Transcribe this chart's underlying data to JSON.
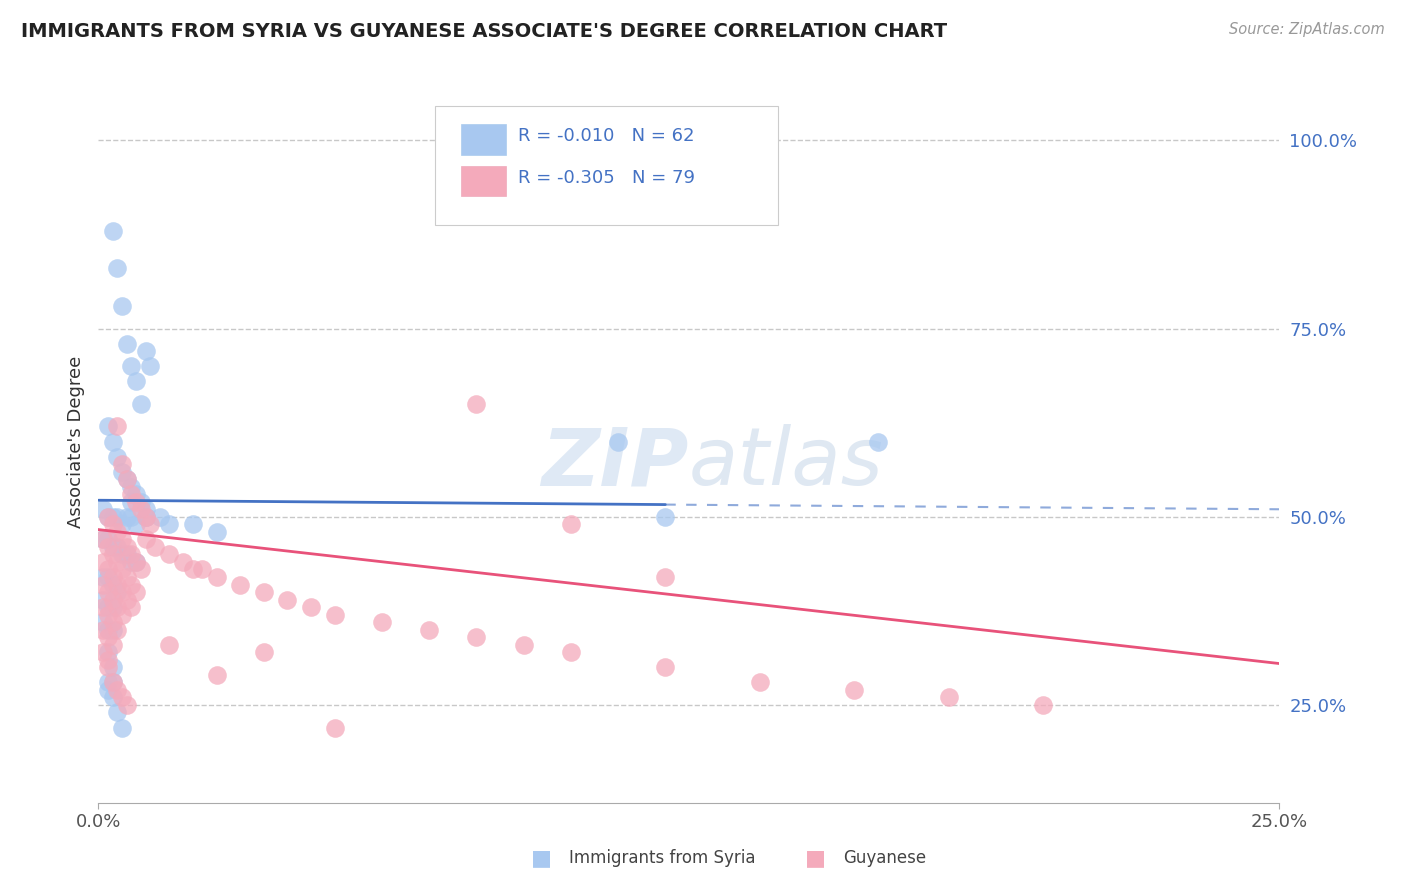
{
  "title": "IMMIGRANTS FROM SYRIA VS GUYANESE ASSOCIATE'S DEGREE CORRELATION CHART",
  "source": "Source: ZipAtlas.com",
  "ylabel": "Associate's Degree",
  "legend_label1": "Immigrants from Syria",
  "legend_label2": "Guyanese",
  "R1": "-0.010",
  "N1": "62",
  "R2": "-0.305",
  "N2": "79",
  "xlim": [
    0.0,
    0.25
  ],
  "ylim": [
    0.12,
    1.08
  ],
  "yticks": [
    0.25,
    0.5,
    0.75,
    1.0
  ],
  "ytick_labels": [
    "25.0%",
    "50.0%",
    "75.0%",
    "100.0%"
  ],
  "color_blue": "#A8C8F0",
  "color_pink": "#F4AABB",
  "color_blue_line": "#4472C4",
  "color_pink_line": "#E8527A",
  "color_grid": "#BBBBBB",
  "background": "#FFFFFF",
  "blue_x": [
    0.003,
    0.004,
    0.005,
    0.006,
    0.007,
    0.008,
    0.009,
    0.01,
    0.011,
    0.002,
    0.003,
    0.004,
    0.005,
    0.006,
    0.007,
    0.008,
    0.009,
    0.01,
    0.001,
    0.002,
    0.003,
    0.004,
    0.005,
    0.006,
    0.007,
    0.008,
    0.01,
    0.001,
    0.002,
    0.003,
    0.004,
    0.005,
    0.006,
    0.007,
    0.008,
    0.001,
    0.002,
    0.003,
    0.004,
    0.001,
    0.002,
    0.003,
    0.001,
    0.002,
    0.003,
    0.002,
    0.003,
    0.11,
    0.165,
    0.12,
    0.007,
    0.01,
    0.013,
    0.015,
    0.02,
    0.025,
    0.002,
    0.003,
    0.004,
    0.005,
    0.003,
    0.002
  ],
  "blue_y": [
    0.88,
    0.83,
    0.78,
    0.73,
    0.7,
    0.68,
    0.65,
    0.72,
    0.7,
    0.62,
    0.6,
    0.58,
    0.56,
    0.55,
    0.54,
    0.53,
    0.52,
    0.51,
    0.51,
    0.5,
    0.5,
    0.5,
    0.49,
    0.5,
    0.5,
    0.49,
    0.5,
    0.47,
    0.47,
    0.46,
    0.46,
    0.45,
    0.45,
    0.44,
    0.44,
    0.42,
    0.42,
    0.41,
    0.4,
    0.39,
    0.38,
    0.38,
    0.36,
    0.35,
    0.35,
    0.32,
    0.3,
    0.6,
    0.6,
    0.5,
    0.52,
    0.5,
    0.5,
    0.49,
    0.49,
    0.48,
    0.28,
    0.26,
    0.24,
    0.22,
    0.28,
    0.27
  ],
  "pink_x": [
    0.004,
    0.005,
    0.006,
    0.007,
    0.008,
    0.009,
    0.01,
    0.011,
    0.002,
    0.003,
    0.004,
    0.005,
    0.006,
    0.007,
    0.008,
    0.009,
    0.001,
    0.002,
    0.003,
    0.004,
    0.005,
    0.006,
    0.007,
    0.008,
    0.001,
    0.002,
    0.003,
    0.004,
    0.005,
    0.006,
    0.007,
    0.001,
    0.002,
    0.003,
    0.004,
    0.005,
    0.001,
    0.002,
    0.003,
    0.004,
    0.001,
    0.002,
    0.003,
    0.001,
    0.002,
    0.01,
    0.012,
    0.015,
    0.018,
    0.02,
    0.022,
    0.025,
    0.03,
    0.035,
    0.04,
    0.045,
    0.05,
    0.06,
    0.07,
    0.08,
    0.09,
    0.1,
    0.12,
    0.14,
    0.16,
    0.18,
    0.2,
    0.08,
    0.1,
    0.015,
    0.025,
    0.12,
    0.05,
    0.035,
    0.003,
    0.004,
    0.005,
    0.006,
    0.002
  ],
  "pink_y": [
    0.62,
    0.57,
    0.55,
    0.53,
    0.52,
    0.51,
    0.5,
    0.49,
    0.5,
    0.49,
    0.48,
    0.47,
    0.46,
    0.45,
    0.44,
    0.43,
    0.47,
    0.46,
    0.45,
    0.44,
    0.43,
    0.42,
    0.41,
    0.4,
    0.44,
    0.43,
    0.42,
    0.41,
    0.4,
    0.39,
    0.38,
    0.41,
    0.4,
    0.39,
    0.38,
    0.37,
    0.38,
    0.37,
    0.36,
    0.35,
    0.35,
    0.34,
    0.33,
    0.32,
    0.31,
    0.47,
    0.46,
    0.45,
    0.44,
    0.43,
    0.43,
    0.42,
    0.41,
    0.4,
    0.39,
    0.38,
    0.37,
    0.36,
    0.35,
    0.34,
    0.33,
    0.32,
    0.3,
    0.28,
    0.27,
    0.26,
    0.25,
    0.65,
    0.49,
    0.33,
    0.29,
    0.42,
    0.22,
    0.32,
    0.28,
    0.27,
    0.26,
    0.25,
    0.3
  ]
}
